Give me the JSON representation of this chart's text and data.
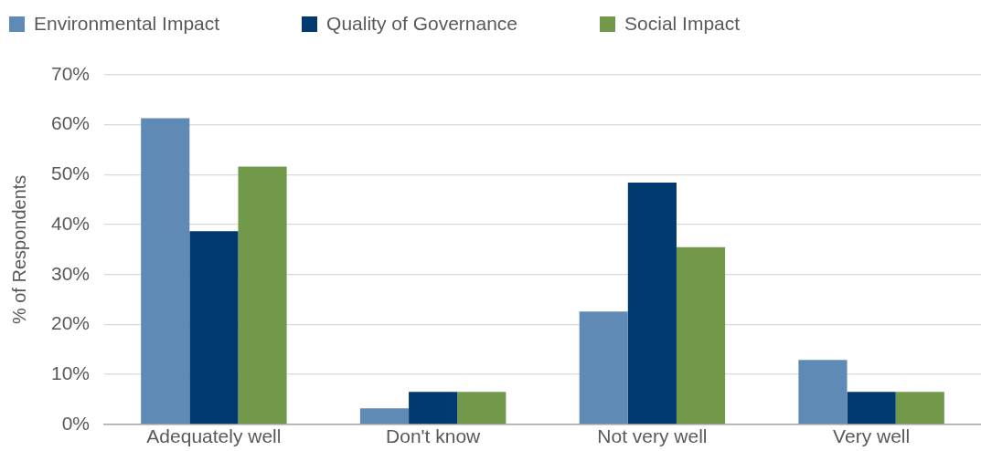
{
  "chart_data": {
    "type": "bar",
    "ylabel": "% of Respondents",
    "categories": [
      "Adequately well",
      "Don't know",
      "Not very well",
      "Very well"
    ],
    "series": [
      {
        "name": "Environmental Impact",
        "color": "#5f8ab5",
        "values": [
          61.3,
          3.2,
          22.6,
          12.9
        ]
      },
      {
        "name": "Quality of Governance",
        "color": "#003a70",
        "values": [
          38.7,
          6.5,
          48.4,
          6.5
        ]
      },
      {
        "name": "Social Impact",
        "color": "#72994a",
        "values": [
          51.6,
          6.5,
          35.5,
          6.5
        ]
      }
    ],
    "ylim": [
      0,
      70
    ],
    "yticks": [
      {
        "value": 0,
        "label": "0%"
      },
      {
        "value": 10,
        "label": "10%"
      },
      {
        "value": 20,
        "label": "20%"
      },
      {
        "value": 30,
        "label": "30%"
      },
      {
        "value": 40,
        "label": "40%"
      },
      {
        "value": 50,
        "label": "50%"
      },
      {
        "value": 60,
        "label": "60%"
      },
      {
        "value": 70,
        "label": "70%"
      }
    ],
    "grid": "y",
    "legend": "top left"
  }
}
